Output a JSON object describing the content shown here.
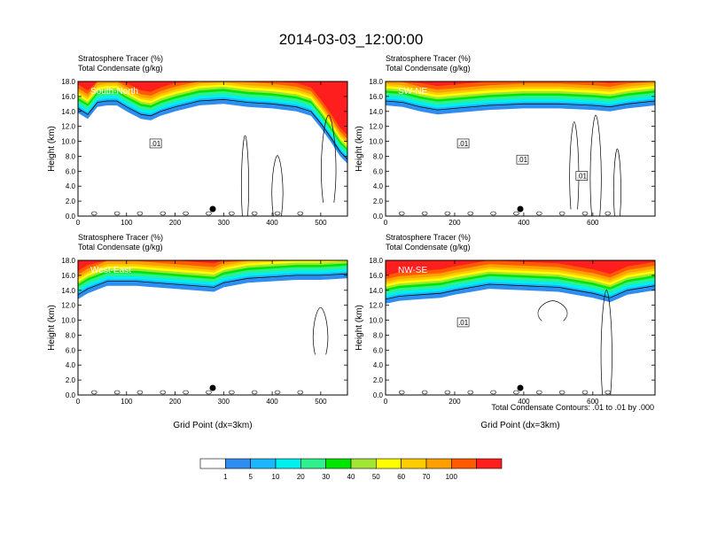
{
  "figure": {
    "title": "2014-03-03_12:00:00",
    "footnote": "Total Condensate Contours: .01 to .01 by .000"
  },
  "colorbar": {
    "labels": [
      "1",
      "5",
      "10",
      "20",
      "30",
      "40",
      "50",
      "60",
      "70",
      "100"
    ],
    "colors": [
      "#ffffff",
      "#2f8cf0",
      "#1ab7ff",
      "#00f0f0",
      "#2ef08c",
      "#00e600",
      "#a0e632",
      "#ffff00",
      "#ffcc00",
      "#ffa000",
      "#ff5a00",
      "#ff1e1e"
    ]
  },
  "chart_data": [
    {
      "type": "heatmap",
      "panel_label": "South-North",
      "subtitle_1": "Stratosphere Tracer   (%)",
      "subtitle_2": "Total Condensate   (g/kg)",
      "ylabel": "Height (km)",
      "xlabel": "",
      "xlim": [
        0,
        555
      ],
      "ylim": [
        0,
        18
      ],
      "xticks": [
        0,
        100,
        200,
        300,
        400,
        500
      ],
      "yticks": [
        "0.0",
        "2.0",
        "4.0",
        "6.0",
        "8.0",
        "10.0",
        "12.0",
        "14.0",
        "16.0",
        "18.0"
      ],
      "contour_labels": [
        ".01"
      ],
      "tracer_top_km": [
        [
          0,
          13.8
        ],
        [
          20,
          13.0
        ],
        [
          40,
          14.6
        ],
        [
          60,
          14.8
        ],
        [
          80,
          14.8
        ],
        [
          100,
          14.0
        ],
        [
          130,
          13.0
        ],
        [
          150,
          12.8
        ],
        [
          170,
          13.4
        ],
        [
          200,
          14.0
        ],
        [
          250,
          14.8
        ],
        [
          300,
          15.0
        ],
        [
          350,
          14.6
        ],
        [
          400,
          14.4
        ],
        [
          450,
          14.0
        ],
        [
          480,
          13.4
        ],
        [
          500,
          11.8
        ],
        [
          520,
          10.0
        ],
        [
          540,
          8.0
        ],
        [
          555,
          7.0
        ]
      ]
    },
    {
      "type": "heatmap",
      "panel_label": "SW-NE",
      "subtitle_1": "Stratosphere Tracer   (%)",
      "subtitle_2": "Total Condensate   (g/kg)",
      "ylabel": "Height (km)",
      "xlabel": "",
      "xlim": [
        0,
        780
      ],
      "ylim": [
        0,
        18
      ],
      "xticks": [
        0,
        200,
        400,
        600
      ],
      "yticks": [
        "0.0",
        "2.0",
        "4.0",
        "6.0",
        "8.0",
        "10.0",
        "12.0",
        "14.0",
        "16.0",
        "18.0"
      ],
      "contour_labels": [
        ".01",
        ".01",
        ".01"
      ],
      "tracer_top_km": [
        [
          0,
          14.8
        ],
        [
          50,
          14.6
        ],
        [
          100,
          14.0
        ],
        [
          150,
          13.6
        ],
        [
          200,
          13.8
        ],
        [
          300,
          14.2
        ],
        [
          400,
          14.4
        ],
        [
          500,
          14.4
        ],
        [
          600,
          14.2
        ],
        [
          650,
          14.0
        ],
        [
          700,
          14.4
        ],
        [
          780,
          14.8
        ]
      ]
    },
    {
      "type": "heatmap",
      "panel_label": "West-East",
      "subtitle_1": "Stratosphere Tracer   (%)",
      "subtitle_2": "Total Condensate   (g/kg)",
      "ylabel": "Height (km)",
      "xlabel": "Grid Point (dx=3km)",
      "xlim": [
        0,
        555
      ],
      "ylim": [
        0,
        18
      ],
      "xticks": [
        0,
        100,
        200,
        300,
        400,
        500
      ],
      "yticks": [
        "0.0",
        "2.0",
        "4.0",
        "6.0",
        "8.0",
        "10.0",
        "12.0",
        "14.0",
        "16.0",
        "18.0"
      ],
      "contour_labels": [],
      "tracer_top_km": [
        [
          0,
          12.8
        ],
        [
          20,
          13.6
        ],
        [
          60,
          14.6
        ],
        [
          120,
          14.6
        ],
        [
          200,
          14.2
        ],
        [
          280,
          13.8
        ],
        [
          300,
          14.4
        ],
        [
          350,
          15.0
        ],
        [
          400,
          15.2
        ],
        [
          450,
          15.4
        ],
        [
          500,
          15.4
        ],
        [
          555,
          15.6
        ]
      ]
    },
    {
      "type": "heatmap",
      "panel_label": "NW-SE",
      "subtitle_1": "Stratosphere Tracer   (%)",
      "subtitle_2": "Total Condensate   (g/kg)",
      "ylabel": "Height (km)",
      "xlabel": "Grid Point (dx=3km)",
      "xlim": [
        0,
        780
      ],
      "ylim": [
        0,
        18
      ],
      "xticks": [
        0,
        200,
        400,
        600
      ],
      "yticks": [
        "0.0",
        "2.0",
        "4.0",
        "6.0",
        "8.0",
        "10.0",
        "12.0",
        "14.0",
        "16.0",
        "18.0"
      ],
      "contour_labels": [
        ".01"
      ],
      "tracer_top_km": [
        [
          0,
          12.2
        ],
        [
          40,
          12.6
        ],
        [
          100,
          12.8
        ],
        [
          160,
          13.0
        ],
        [
          200,
          13.4
        ],
        [
          300,
          14.2
        ],
        [
          400,
          14.0
        ],
        [
          500,
          13.8
        ],
        [
          600,
          13.0
        ],
        [
          650,
          12.4
        ],
        [
          700,
          13.4
        ],
        [
          780,
          14.0
        ]
      ]
    }
  ]
}
